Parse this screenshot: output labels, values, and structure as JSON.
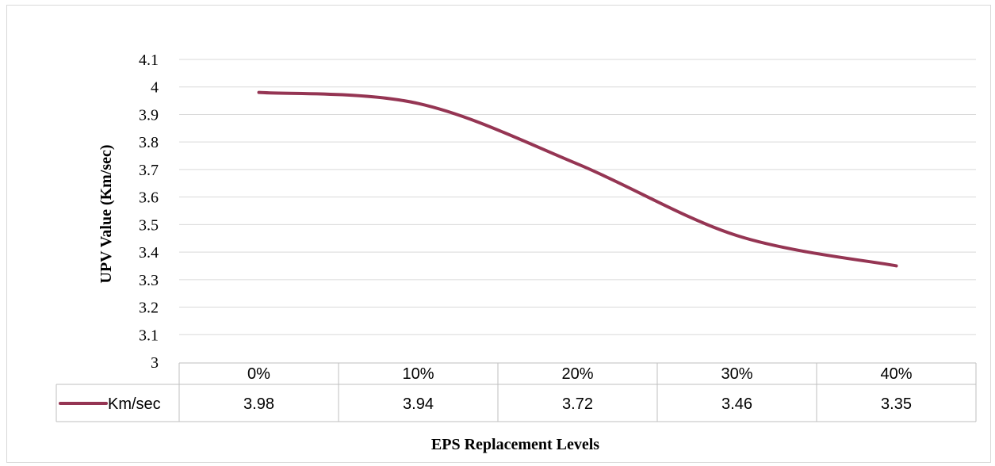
{
  "chart_data": {
    "type": "line",
    "categories": [
      "0%",
      "10%",
      "20%",
      "30%",
      "40%"
    ],
    "series": [
      {
        "name": "Km/sec",
        "values": [
          3.98,
          3.94,
          3.72,
          3.46,
          3.35
        ],
        "color": "#953553"
      }
    ],
    "xlabel": "EPS Replacement  Levels",
    "ylabel": "UPV Value (Km/sec)",
    "ylim": [
      3,
      4.1
    ],
    "yticks": [
      "3",
      "3.1",
      "3.2",
      "3.3",
      "3.4",
      "3.5",
      "3.6",
      "3.7",
      "3.8",
      "3.9",
      "4",
      "4.1"
    ],
    "grid": true,
    "legend": "data-table",
    "smooth": true
  }
}
